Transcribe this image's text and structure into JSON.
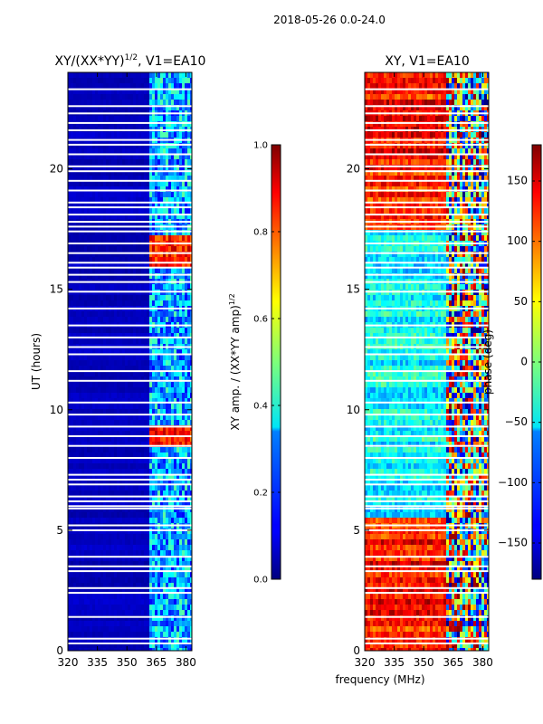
{
  "suptitle": "2018-05-26 0.0-24.0",
  "chart_data": [
    {
      "type": "heatmap",
      "title": "XY/(XX*YY)^{1/2}, V1=EA10",
      "title_text": "XY/(XX*YY)",
      "title_exponent": "1/2",
      "title_suffix": ", V1=EA10",
      "xlabel": "",
      "ylabel": "UT (hours)",
      "xlim": [
        320,
        383
      ],
      "ylim": [
        0,
        24
      ],
      "xticks": [
        320,
        335,
        350,
        365,
        380
      ],
      "yticks": [
        0,
        5,
        10,
        15,
        20
      ],
      "colorbar": {
        "label": "XY amp. / (XX*YY amp)^{1/2}",
        "label_text": "XY amp. / (XX*YY amp)",
        "label_exponent": "1/2",
        "range": [
          0.0,
          1.0
        ],
        "ticks": [
          "0.0",
          "0.2",
          "0.4",
          "0.6",
          "0.8",
          "1.0"
        ],
        "tick_values": [
          0.0,
          0.2,
          0.4,
          0.6,
          0.8,
          1.0
        ],
        "colormap": "jet"
      },
      "flagged_ut_hours": [
        0.3,
        0.5,
        1.4,
        2.4,
        2.6,
        3.3,
        3.5,
        3.9,
        5.0,
        5.2,
        5.9,
        6.0,
        6.2,
        6.4,
        6.9,
        7.1,
        7.3,
        8.0,
        8.5,
        8.9,
        9.3,
        9.8,
        10.3,
        11.2,
        11.6,
        12.3,
        12.6,
        13.0,
        13.5,
        14.2,
        14.9,
        15.3,
        15.6,
        15.9,
        16.1,
        16.5,
        16.9,
        17.4,
        17.6,
        17.8,
        18.1,
        18.4,
        18.6,
        19.1,
        19.5,
        19.9,
        20.1,
        20.6,
        21.0,
        21.2,
        21.6,
        21.9,
        22.3,
        22.6,
        23.3
      ],
      "notes": "Low values (~0.05) below 361 MHz; structured RFI features (0.2-0.5) above 361 MHz; high values (~0.8-0.9) at 362-381 MHz during UT 16-17.3 and UT 8.5-9.3"
    },
    {
      "type": "heatmap",
      "title": "XY, V1=EA10",
      "xlabel": "frequency (MHz)",
      "ylabel": "",
      "xlim": [
        320,
        383
      ],
      "ylim": [
        0,
        24
      ],
      "xticks": [
        320,
        335,
        350,
        365,
        380
      ],
      "yticks": [
        0,
        5,
        10,
        15,
        20
      ],
      "colorbar": {
        "label": "phase (deg)",
        "range": [
          -180,
          180
        ],
        "ticks": [
          "−150",
          "−100",
          "−50",
          "0",
          "50",
          "100",
          "150"
        ],
        "tick_values": [
          -150,
          -100,
          -50,
          0,
          50,
          100,
          150
        ],
        "colormap": "jet"
      },
      "flagged_ut_hours": [
        0.3,
        0.5,
        1.4,
        2.4,
        2.6,
        3.3,
        3.5,
        3.9,
        5.0,
        5.2,
        5.9,
        6.0,
        6.2,
        6.4,
        6.9,
        7.1,
        7.3,
        8.0,
        8.5,
        8.9,
        9.3,
        9.8,
        10.3,
        11.2,
        11.6,
        12.3,
        12.6,
        13.0,
        13.5,
        14.2,
        14.9,
        15.3,
        15.6,
        15.9,
        16.1,
        16.5,
        16.9,
        17.4,
        17.6,
        17.8,
        18.1,
        18.4,
        18.6,
        19.1,
        19.5,
        19.9,
        20.1,
        20.6,
        21.0,
        21.2,
        21.6,
        21.9,
        22.3,
        22.6,
        23.3
      ],
      "notes": "Phase ~+120 to +170 deg for UT 17.5-24 and UT 0-5.5; phase ~-80 to -10 deg for UT 6-16.5; noisy structure above 361 MHz"
    }
  ]
}
